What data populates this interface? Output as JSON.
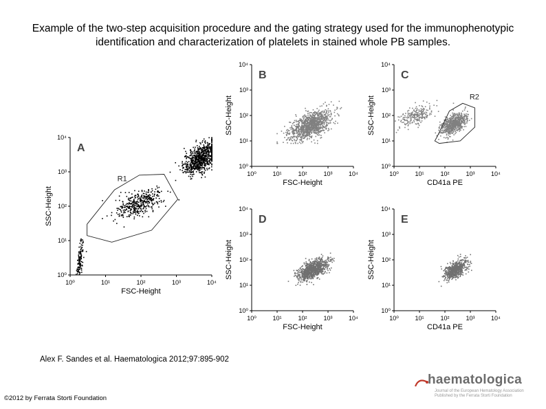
{
  "title": "Example of the two-step acquisition procedure and the gating strategy used for the immunophenotypic identification and characterization of platelets in stained whole PB samples.",
  "citation": "Alex F. Sandes et al. Haematologica 2012;97:895-902",
  "copyright": "©2012 by Ferrata Storti Foundation",
  "logo": {
    "name": "haematologica",
    "subtitle_1": "Journal of the European Hematology Association",
    "subtitle_2": "Published by the Ferrata Storti Foundation"
  },
  "chart_data": [
    {
      "id": "A",
      "type": "scatter",
      "panel_label": "A",
      "xlabel": "FSC-Height",
      "ylabel": "SSC-Height",
      "x_scale": "log",
      "y_scale": "log",
      "xlim": [
        1,
        10000
      ],
      "ylim": [
        1,
        10000
      ],
      "x_ticks": [
        "10⁰",
        "10¹",
        "10²",
        "10³",
        "10⁴"
      ],
      "y_ticks": [
        "10⁰",
        "10¹",
        "10²",
        "10³",
        "10⁴"
      ],
      "point_color": "#000000",
      "gates": [
        {
          "name": "R1",
          "polygon": [
            [
              3,
              30
            ],
            [
              18,
              300
            ],
            [
              90,
              800
            ],
            [
              450,
              850
            ],
            [
              1100,
              160
            ],
            [
              200,
              20
            ],
            [
              15,
              9
            ],
            [
              3,
              14
            ]
          ]
        }
      ],
      "clusters": [
        {
          "center": [
            5000,
            2500
          ],
          "spread": [
            0.25,
            0.25
          ],
          "count": 750,
          "clip_x_max": 10000
        },
        {
          "center": [
            90,
            120
          ],
          "spread": [
            0.33,
            0.22
          ],
          "count": 380
        },
        {
          "center": [
            1.9,
            2.6
          ],
          "spread": [
            0.05,
            0.3
          ],
          "count": 130
        }
      ]
    },
    {
      "id": "B",
      "type": "scatter",
      "panel_label": "B",
      "xlabel": "FSC-Height",
      "ylabel": "SSC-Height",
      "x_scale": "log",
      "y_scale": "log",
      "xlim": [
        1,
        10000
      ],
      "ylim": [
        1,
        10000
      ],
      "x_ticks": [
        "10⁰",
        "10¹",
        "10²",
        "10³",
        "10⁴"
      ],
      "y_ticks": [
        "10⁰",
        "10¹",
        "10²",
        "10³",
        "10⁴"
      ],
      "point_color": "#808080",
      "gates": [],
      "clusters": [
        {
          "center": [
            200,
            40
          ],
          "spread": [
            0.42,
            0.3
          ],
          "count": 1100,
          "clip_x_min": 10,
          "clip_y_min": 8
        }
      ]
    },
    {
      "id": "C",
      "type": "scatter",
      "panel_label": "C",
      "xlabel": "CD41a PE",
      "ylabel": "SSC-Height",
      "x_scale": "log",
      "y_scale": "log",
      "xlim": [
        1,
        10000
      ],
      "ylim": [
        1,
        10000
      ],
      "x_ticks": [
        "10⁰",
        "10¹",
        "10²",
        "10³",
        "10⁴"
      ],
      "y_ticks": [
        "10⁰",
        "10¹",
        "10²",
        "10³",
        "10⁴"
      ],
      "point_color": "#808080",
      "gates": [
        {
          "name": "R2",
          "polygon": [
            [
              50,
              15
            ],
            [
              150,
              150
            ],
            [
              500,
              300
            ],
            [
              1500,
              200
            ],
            [
              1500,
              35
            ],
            [
              400,
              10
            ],
            [
              60,
              8
            ],
            [
              40,
              10
            ]
          ]
        }
      ],
      "clusters": [
        {
          "center": [
            220,
            45
          ],
          "spread": [
            0.25,
            0.22
          ],
          "count": 700
        },
        {
          "center": [
            8,
            100
          ],
          "spread": [
            0.35,
            0.25
          ],
          "count": 220,
          "clip_x_min": 1
        }
      ]
    },
    {
      "id": "D",
      "type": "scatter",
      "panel_label": "D",
      "xlabel": "FSC-Height",
      "ylabel": "SSC-Height",
      "x_scale": "log",
      "y_scale": "log",
      "xlim": [
        1,
        10000
      ],
      "ylim": [
        1,
        10000
      ],
      "x_ticks": [
        "10⁰",
        "10¹",
        "10²",
        "10³",
        "10⁴"
      ],
      "y_ticks": [
        "10⁰",
        "10¹",
        "10²",
        "10³",
        "10⁴"
      ],
      "point_color": "#707070",
      "gates": [],
      "clusters": [
        {
          "center": [
            250,
            40
          ],
          "spread": [
            0.3,
            0.22
          ],
          "count": 900
        }
      ]
    },
    {
      "id": "E",
      "type": "scatter",
      "panel_label": "E",
      "xlabel": "CD41a PE",
      "ylabel": "SSC-Height",
      "x_scale": "log",
      "y_scale": "log",
      "xlim": [
        1,
        10000
      ],
      "ylim": [
        1,
        10000
      ],
      "x_ticks": [
        "10⁰",
        "10¹",
        "10²",
        "10³",
        "10⁴"
      ],
      "y_ticks": [
        "10⁰",
        "10¹",
        "10²",
        "10³",
        "10⁴"
      ],
      "point_color": "#707070",
      "gates": [],
      "clusters": [
        {
          "center": [
            250,
            40
          ],
          "spread": [
            0.22,
            0.2
          ],
          "count": 650
        }
      ]
    }
  ]
}
